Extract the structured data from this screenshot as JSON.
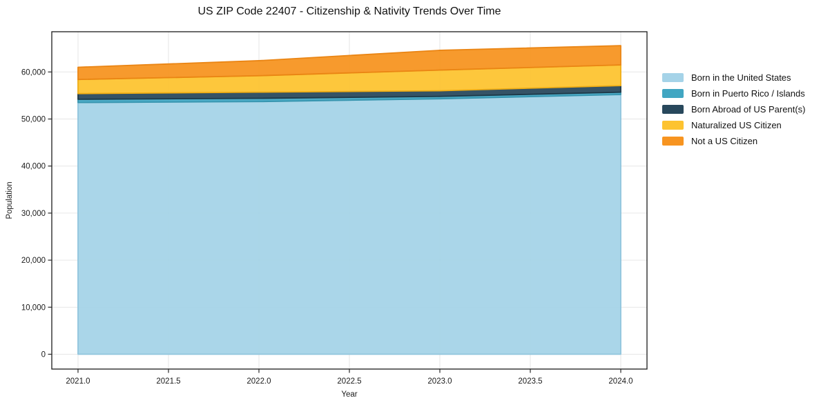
{
  "chart_data": {
    "type": "area",
    "stacked": true,
    "title": "US ZIP Code 22407 - Citizenship & Nativity Trends Over Time",
    "xlabel": "Year",
    "ylabel": "Population",
    "x": [
      2021,
      2022,
      2023,
      2024
    ],
    "series": [
      {
        "name": "Born in the United States",
        "color": "#a5d3e8",
        "edge_color": "#90c5dd",
        "values": [
          53500,
          53700,
          54300,
          55200
        ]
      },
      {
        "name": "Born in Puerto Rico / Islands",
        "color": "#41a6c2",
        "edge_color": "#3795af",
        "values": [
          700,
          700,
          500,
          500
        ]
      },
      {
        "name": "Born Abroad of US Parent(s)",
        "color": "#28485c",
        "edge_color": "#1e3948",
        "values": [
          1200,
          1300,
          1200,
          1400
        ]
      },
      {
        "name": "Naturalized US Citizen",
        "color": "#fdc330",
        "edge_color": "#f0ad14",
        "values": [
          3000,
          3500,
          4400,
          4400
        ]
      },
      {
        "name": "Not a US Citizen",
        "color": "#f79420",
        "edge_color": "#ea8514",
        "values": [
          2600,
          3200,
          4200,
          4100
        ]
      }
    ],
    "totals": [
      61000,
      62400,
      64600,
      65600
    ],
    "xlim": [
      2020.855,
      2024.145
    ],
    "ylim": [
      -3150,
      68550
    ],
    "xticks": [
      2021.0,
      2021.5,
      2022.0,
      2022.5,
      2023.0,
      2023.5,
      2024.0
    ],
    "xtick_labels": [
      "2021.0",
      "2021.5",
      "2022.0",
      "2022.5",
      "2023.0",
      "2023.5",
      "2024.0"
    ],
    "yticks": [
      0,
      10000,
      20000,
      30000,
      40000,
      50000,
      60000
    ],
    "ytick_labels": [
      "0",
      "10,000",
      "20,000",
      "30,000",
      "40,000",
      "50,000",
      "60,000"
    ],
    "grid": true,
    "grid_color": "#e6e6e6",
    "spine_color": "#1a1a1a",
    "tick_color": "#262626",
    "legend_position": "right-outside",
    "background": "#ffffff"
  }
}
